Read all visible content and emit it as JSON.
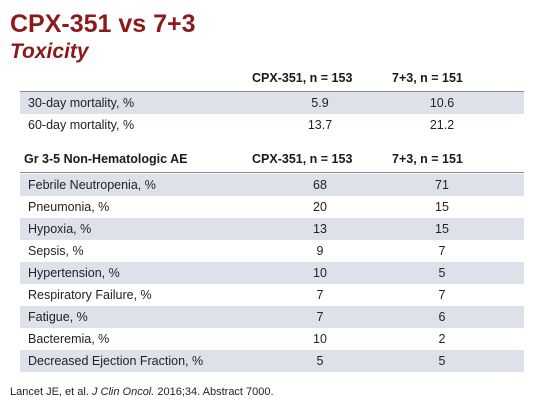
{
  "title": "CPX-351 vs 7+3",
  "subtitle": "Toxicity",
  "mortality": {
    "col1": "CPX-351, n = 153",
    "col2": "7+3, n = 151",
    "rows": [
      {
        "label": "30-day mortality, %",
        "v1": "5.9",
        "v2": "10.6"
      },
      {
        "label": "60-day mortality, %",
        "v1": "13.7",
        "v2": "21.2"
      }
    ]
  },
  "ae": {
    "section": "Gr 3-5 Non-Hematologic AE",
    "col1": "CPX-351, n = 153",
    "col2": "7+3, n = 151",
    "rows": [
      {
        "label": "Febrile Neutropenia, %",
        "v1": "68",
        "v2": "71"
      },
      {
        "label": "Pneumonia, %",
        "v1": "20",
        "v2": "15"
      },
      {
        "label": "Hypoxia, %",
        "v1": "13",
        "v2": "15"
      },
      {
        "label": "Sepsis, %",
        "v1": "9",
        "v2": "7"
      },
      {
        "label": "Hypertension, %",
        "v1": "10",
        "v2": "5"
      },
      {
        "label": "Respiratory Failure, %",
        "v1": "7",
        "v2": "7"
      },
      {
        "label": "Fatigue, %",
        "v1": "7",
        "v2": "6"
      },
      {
        "label": "Bacteremia, %",
        "v1": "10",
        "v2": "2"
      },
      {
        "label": "Decreased Ejection Fraction, %",
        "v1": "5",
        "v2": "5"
      }
    ]
  },
  "footnote": {
    "authors": "Lancet JE, et al.",
    "journal": "J Clin Oncol.",
    "rest": "2016;34. Abstract 7000."
  }
}
